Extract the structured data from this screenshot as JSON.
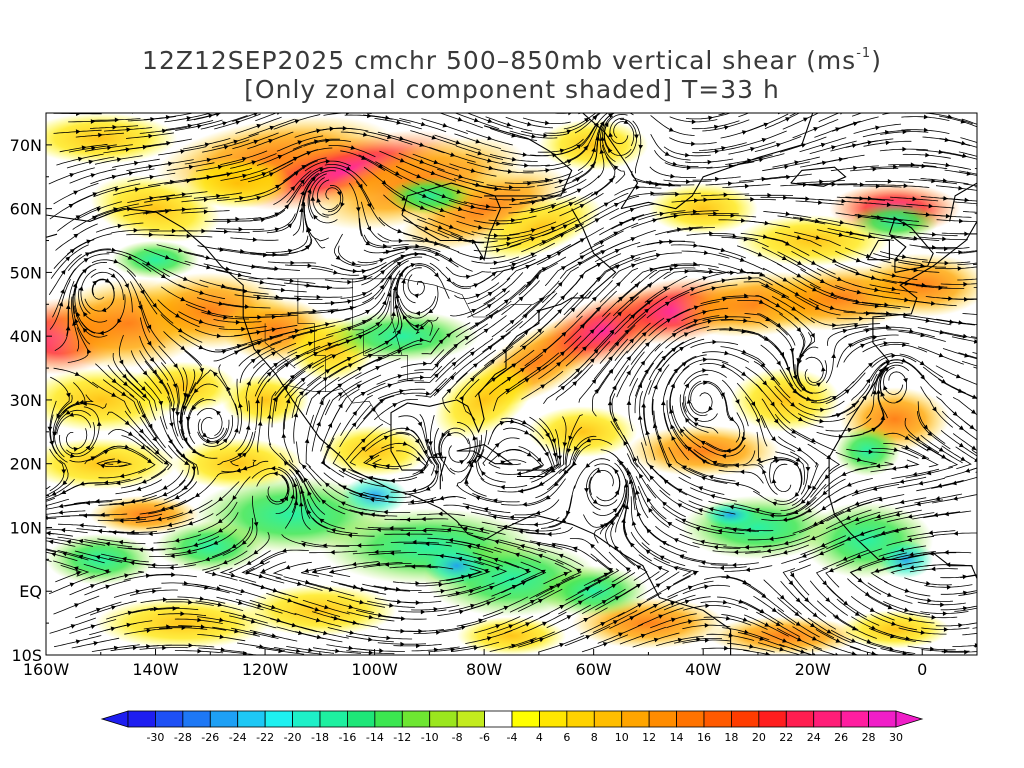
{
  "title": {
    "line1_main": "12Z12SEP2025 cmchr 500–850mb vertical shear (ms",
    "line1_sup": "-1",
    "line1_end": ")",
    "line2": "[Only zonal component shaded] T=33 h"
  },
  "map": {
    "lat_labels": [
      "70N",
      "60N",
      "50N",
      "40N",
      "30N",
      "20N",
      "10N",
      "EQ",
      "10S"
    ],
    "lon_labels": [
      "160W",
      "140W",
      "120W",
      "100W",
      "80W",
      "60W",
      "40W",
      "20W",
      "0"
    ],
    "lat_range": [
      -10,
      75
    ],
    "lon_range": [
      -160,
      10
    ]
  },
  "colorbar": {
    "labels": [
      "-30",
      "-28",
      "-26",
      "-24",
      "-22",
      "-20",
      "-18",
      "-16",
      "-14",
      "-12",
      "-10",
      "-8",
      "-6",
      "-4",
      "4",
      "6",
      "8",
      "10",
      "12",
      "14",
      "16",
      "18",
      "20",
      "22",
      "24",
      "26",
      "28",
      "30"
    ],
    "colors": [
      "#1e1ef0",
      "#1e50f5",
      "#1e78f5",
      "#1ea0f5",
      "#1ec8f5",
      "#1ef0f0",
      "#1ef0c8",
      "#1ef0a0",
      "#1ee678",
      "#3ce650",
      "#6ee632",
      "#9be61e",
      "#c3eb1e",
      "#ffffff",
      "#ffff00",
      "#ffe600",
      "#ffd200",
      "#ffbe00",
      "#ffa500",
      "#ff8c00",
      "#ff7300",
      "#ff5a00",
      "#ff3c00",
      "#ff1e1e",
      "#ff1e50",
      "#ff1e78",
      "#ff1ea0",
      "#f01ec8"
    ]
  }
}
